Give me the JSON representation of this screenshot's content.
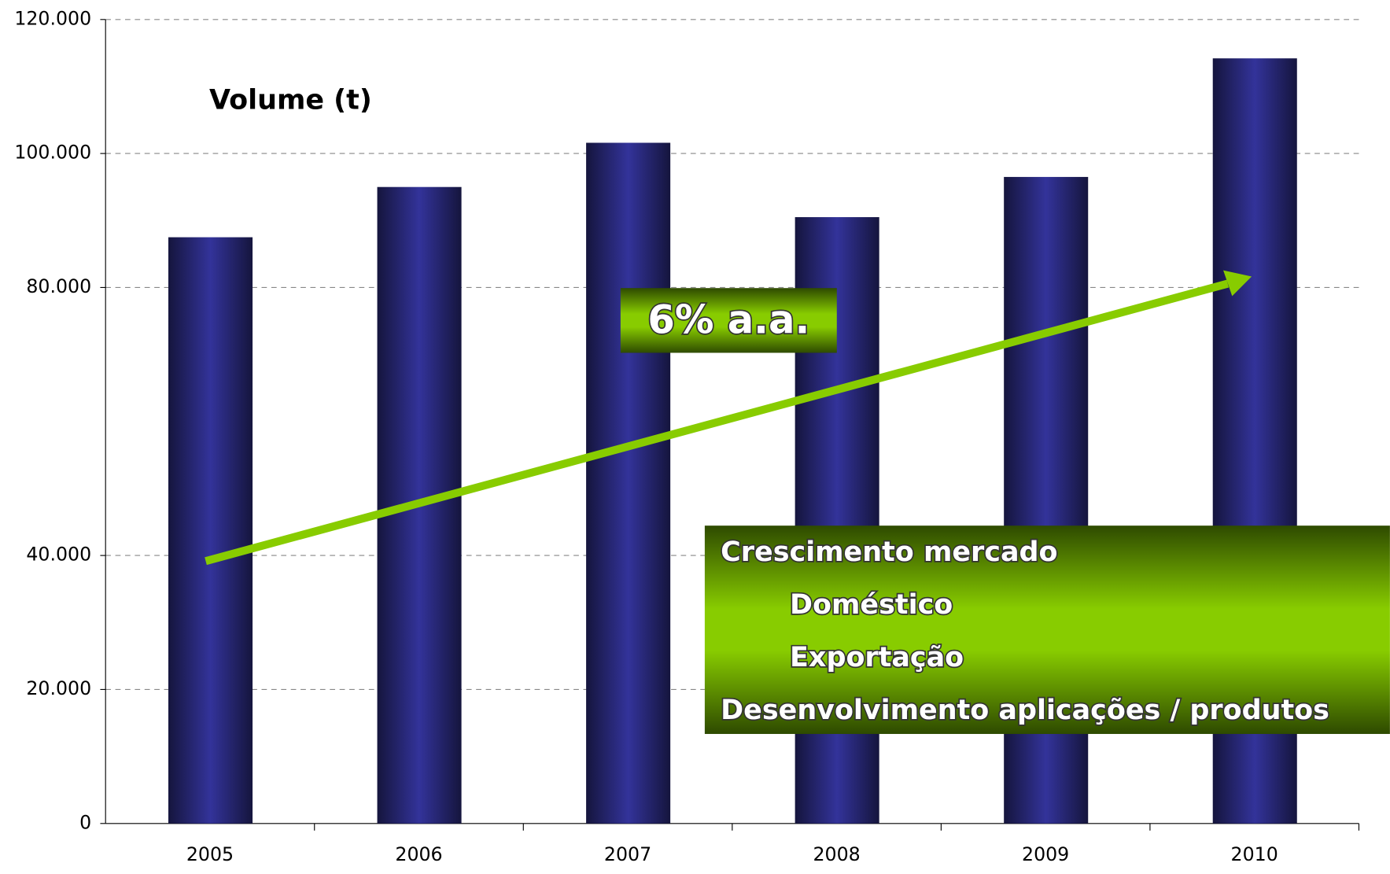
{
  "chart_data": {
    "type": "bar",
    "title": "Volume (t)",
    "categories": [
      "2005",
      "2006",
      "2007",
      "2008",
      "2009",
      "2010"
    ],
    "values": [
      87500,
      95000,
      101600,
      90500,
      96500,
      114200
    ],
    "color": "#33339a",
    "ylim": [
      0,
      120000
    ],
    "yticks": [
      0,
      {
        "value": 20000,
        "label": "20.000"
      },
      {
        "value": 40000,
        "label": "40.000"
      },
      {
        "value": 80000,
        "label": "80.000"
      },
      {
        "value": 100000,
        "label": "100.000"
      },
      {
        "value": 120000,
        "label": "120.000"
      }
    ],
    "grid": true,
    "annotation": "6% a.a.",
    "notes": [
      "Crescimento mercado",
      "Doméstico",
      "Exportação",
      "Desenvolvimento aplicações / produtos"
    ]
  }
}
